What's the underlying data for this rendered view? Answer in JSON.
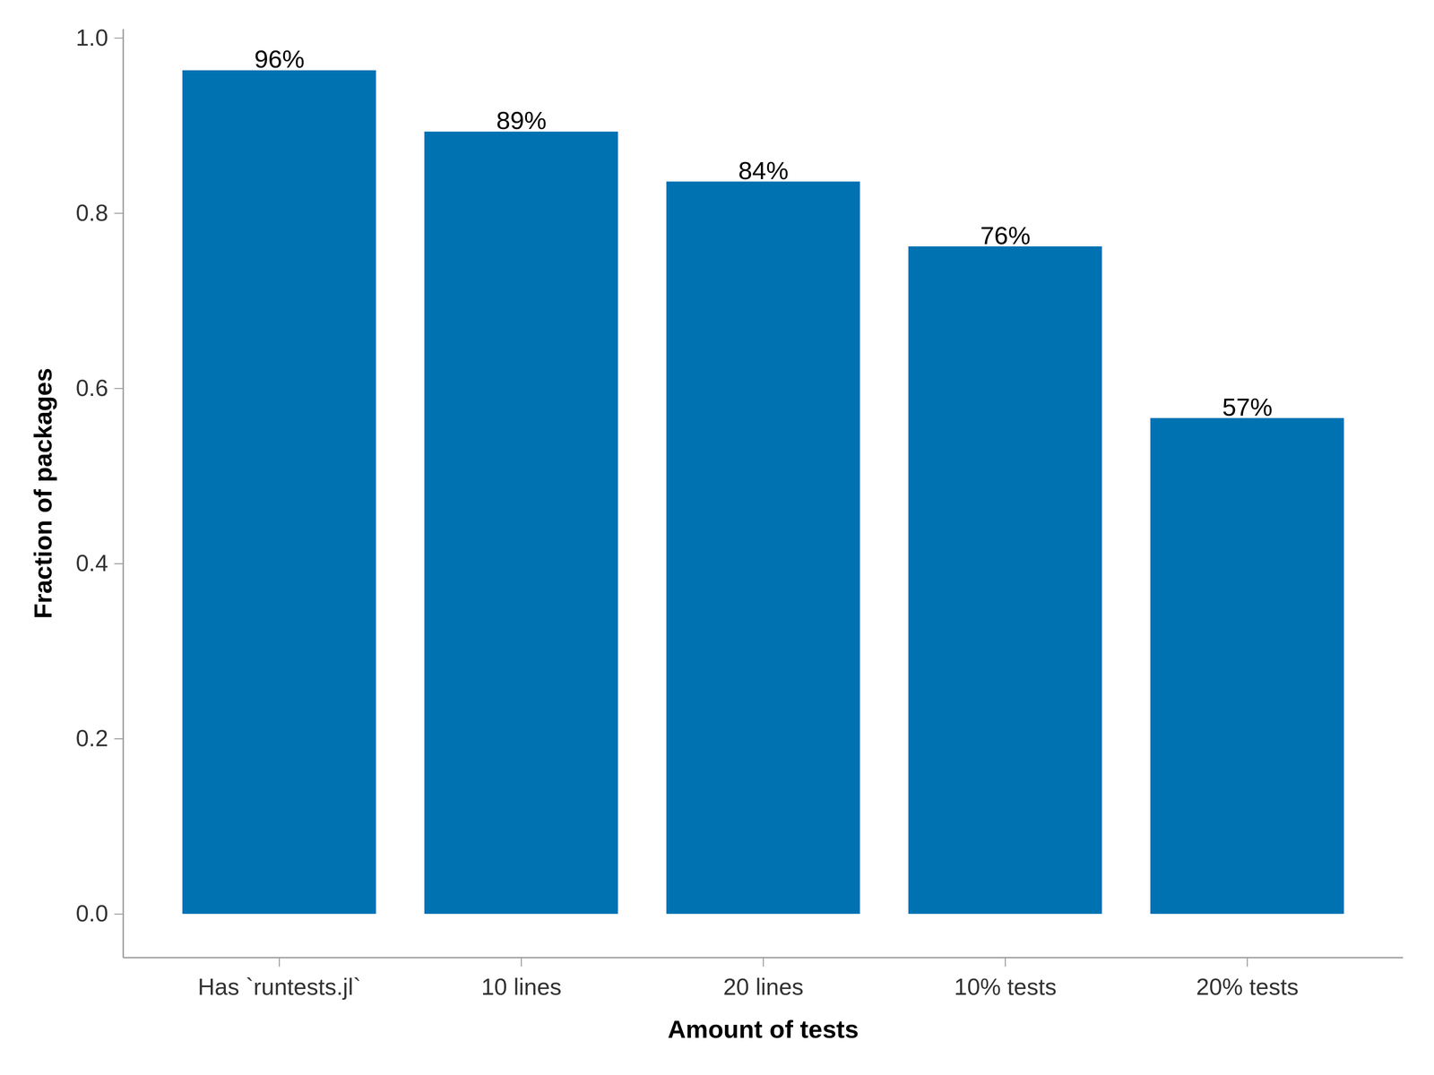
{
  "chart_data": {
    "type": "bar",
    "x_label": "Amount of tests",
    "y_label": "Fraction of packages",
    "categories": [
      "Has `runtests.jl`",
      "10 lines",
      "20 lines",
      "10% tests",
      "20% tests"
    ],
    "values": [
      0.963,
      0.893,
      0.836,
      0.762,
      0.566
    ],
    "value_labels": [
      "96%",
      "89%",
      "84%",
      "76%",
      "57%"
    ],
    "color": "#0072b2",
    "ylim": [
      -0.05,
      1.01
    ],
    "yticks": [
      {
        "value": 0,
        "label": "0.0"
      },
      0.2,
      0.4,
      0.6,
      0.8,
      {
        "value": 1,
        "label": "1.0"
      }
    ],
    "grid": false,
    "data_labels": true
  }
}
